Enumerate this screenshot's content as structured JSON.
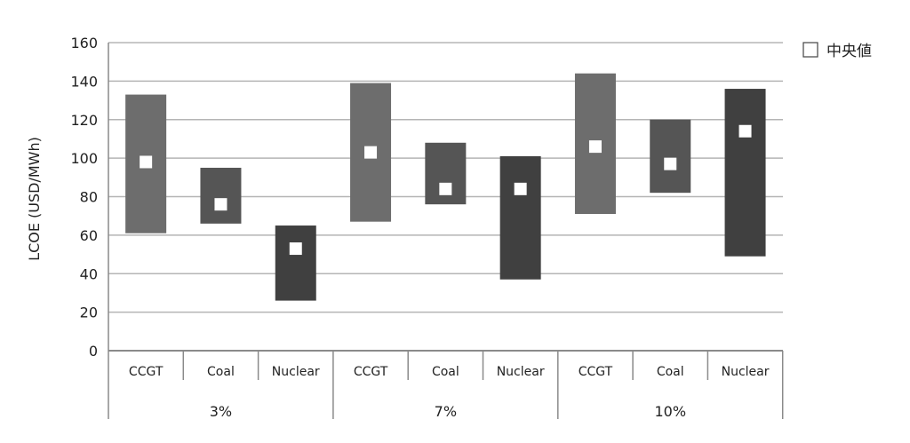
{
  "chart_data": {
    "type": "bar",
    "subtype": "floating-range-with-median",
    "ylabel": "LCOE (USD/MWh)",
    "ylim": [
      0,
      160
    ],
    "yticks": [
      0,
      20,
      40,
      60,
      80,
      100,
      120,
      140,
      160
    ],
    "grid": true,
    "legend": {
      "position": "top-right",
      "label": "中央値"
    },
    "groups": [
      {
        "label": "3%",
        "categories": [
          {
            "label": "CCGT",
            "min": 61,
            "max": 133,
            "median": 98,
            "color": "#6d6d6d"
          },
          {
            "label": "Coal",
            "min": 66,
            "max": 95,
            "median": 76,
            "color": "#555555"
          },
          {
            "label": "Nuclear",
            "min": 26,
            "max": 65,
            "median": 53,
            "color": "#404040"
          }
        ]
      },
      {
        "label": "7%",
        "categories": [
          {
            "label": "CCGT",
            "min": 67,
            "max": 139,
            "median": 103,
            "color": "#6d6d6d"
          },
          {
            "label": "Coal",
            "min": 76,
            "max": 108,
            "median": 84,
            "color": "#555555"
          },
          {
            "label": "Nuclear",
            "min": 37,
            "max": 101,
            "median": 84,
            "color": "#404040"
          }
        ]
      },
      {
        "label": "10%",
        "categories": [
          {
            "label": "CCGT",
            "min": 71,
            "max": 144,
            "median": 106,
            "color": "#6d6d6d"
          },
          {
            "label": "Coal",
            "min": 82,
            "max": 120,
            "median": 97,
            "color": "#555555"
          },
          {
            "label": "Nuclear",
            "min": 49,
            "max": 136,
            "median": 114,
            "color": "#404040"
          }
        ]
      }
    ],
    "colors": {
      "grid": "#b5b5b5",
      "axis": "#8a8a8a",
      "median_marker": "#ffffff"
    }
  }
}
